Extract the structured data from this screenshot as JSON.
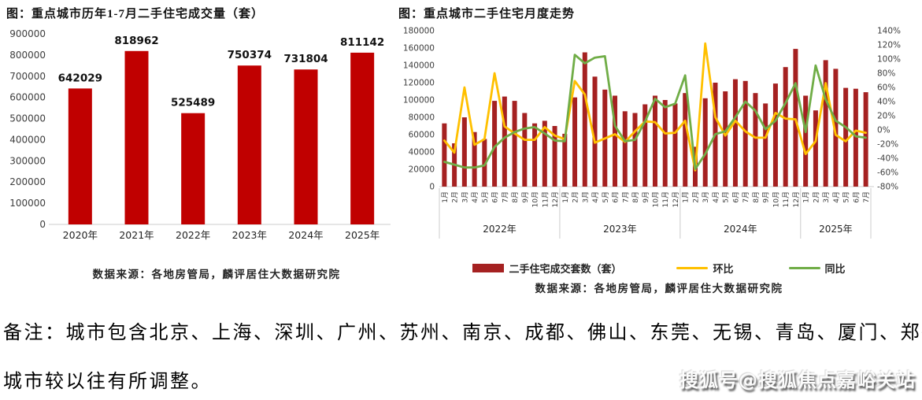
{
  "page": {
    "note_line1": "备注：城市包含北京、上海、深圳、广州、苏州、南京、成都、佛山、东莞、无锡、青岛、厦门、郑州，",
    "note_line2": "城市较以往有所调整。",
    "watermark": "搜狐号@搜狐焦点嘉峪关站"
  },
  "chart_data": [
    {
      "type": "bar",
      "title": "图：重点城市历年1-7月二手住宅成交量（套）",
      "categories": [
        "2020年",
        "2021年",
        "2022年",
        "2023年",
        "2024年",
        "2025年"
      ],
      "values": [
        642029,
        818962,
        525489,
        750374,
        731804,
        811142
      ],
      "value_labels_shown": true,
      "xlabel": "",
      "ylabel": "",
      "ylim": [
        0,
        900000
      ],
      "ytick_step": 100000,
      "grid": false,
      "bar_color": "#C00000",
      "axis_text_color": "#3d3d3d",
      "source": "数据来源：各地房管局，麟评居住大数据研究院"
    },
    {
      "type": "bar+line",
      "title": "图：重点城市二手住宅月度走势",
      "x_groups": [
        {
          "year": "2022年",
          "months": [
            "1月",
            "2月",
            "3月",
            "4月",
            "5月",
            "6月",
            "7月",
            "8月",
            "9月",
            "10月",
            "11月",
            "12月"
          ]
        },
        {
          "year": "2023年",
          "months": [
            "1月",
            "2月",
            "3月",
            "4月",
            "5月",
            "6月",
            "7月",
            "8月",
            "9月",
            "10月",
            "11月",
            "12月"
          ]
        },
        {
          "year": "2024年",
          "months": [
            "1月",
            "2月",
            "3月",
            "4月",
            "5月",
            "6月",
            "7月",
            "8月",
            "9月",
            "10月",
            "11月",
            "12月"
          ]
        },
        {
          "year": "2025年",
          "months": [
            "1月",
            "2月",
            "3月",
            "4月",
            "5月",
            "6月",
            "7月"
          ]
        }
      ],
      "series": [
        {
          "name": "二手住宅成交套数（套）",
          "type": "bar",
          "axis": "left",
          "color": "#A52121",
          "values_estimated": true,
          "values": [
            73000,
            50000,
            80000,
            63000,
            55000,
            99000,
            104000,
            99000,
            85000,
            73000,
            76000,
            70000,
            61000,
            103000,
            155000,
            127000,
            112000,
            105000,
            87000,
            85000,
            95000,
            105000,
            100000,
            96000,
            108000,
            46000,
            102000,
            120000,
            110000,
            124000,
            122000,
            108000,
            96000,
            119000,
            138000,
            159000,
            105000,
            88000,
            146000,
            136000,
            114000,
            113000,
            109000
          ]
        },
        {
          "name": "环比",
          "type": "line",
          "axis": "right",
          "color": "#FFC000",
          "values_estimated": true,
          "values": [
            -15,
            -32,
            60,
            -21,
            -13,
            80,
            5,
            -5,
            -14,
            -14,
            4,
            -8,
            -13,
            69,
            50,
            -18,
            -12,
            -6,
            -17,
            -2,
            12,
            11,
            -5,
            -4,
            13,
            -57,
            122,
            18,
            -8,
            13,
            -2,
            -11,
            -11,
            24,
            16,
            15,
            -34,
            -16,
            66,
            -7,
            -16,
            -1,
            -4
          ]
        },
        {
          "name": "同比",
          "type": "line",
          "axis": "right",
          "color": "#70AD47",
          "values_estimated": true,
          "values": [
            -45,
            -49,
            -53,
            -53,
            -50,
            -24,
            -11,
            -3,
            2,
            4,
            -5,
            -15,
            -16,
            106,
            94,
            102,
            104,
            6,
            -16,
            -14,
            12,
            44,
            32,
            37,
            77,
            -55,
            -34,
            -6,
            -2,
            18,
            40,
            27,
            1,
            13,
            38,
            66,
            -3,
            91,
            43,
            13,
            4,
            -9,
            -11
          ]
        }
      ],
      "left_axis": {
        "lim": [
          0,
          180000
        ],
        "tick_step": 20000
      },
      "right_axis": {
        "lim": [
          -80,
          140
        ],
        "tick_step": 20,
        "unit": "%"
      },
      "grid": false,
      "legend_position": "bottom",
      "axis_text_color": "#3d3d3d",
      "source": "数据来源：各地房管局，麟评居住大数据研究院"
    }
  ]
}
